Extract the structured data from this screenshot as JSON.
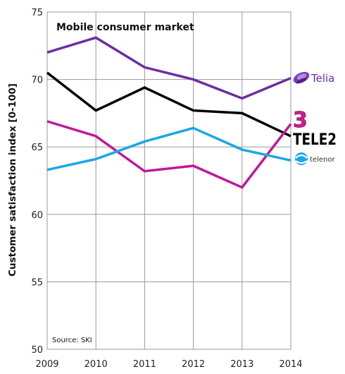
{
  "chart_data": {
    "type": "line",
    "title": "Mobile consumer market",
    "ylabel": "Customer satisfaction index [0-100]",
    "xlabel": "",
    "source": "Source: SKI",
    "x": [
      "2009",
      "2010",
      "2011",
      "2012",
      "2013",
      "2014"
    ],
    "ylim": [
      50,
      75
    ],
    "yticks": [
      "50",
      "55",
      "60",
      "65",
      "70",
      "75"
    ],
    "grid": true,
    "series": [
      {
        "name": "Telia",
        "color": "#6b2fa0",
        "values": [
          72.0,
          73.1,
          70.9,
          70.0,
          68.6,
          70.1
        ]
      },
      {
        "name": "Tele2",
        "color": "#000000",
        "values": [
          70.5,
          67.7,
          69.4,
          67.7,
          67.5,
          65.8
        ]
      },
      {
        "name": "3",
        "color": "#c0189a",
        "values": [
          66.9,
          65.8,
          63.2,
          63.6,
          62.0,
          66.7
        ]
      },
      {
        "name": "Telenor",
        "color": "#1aa7e8",
        "values": [
          63.3,
          64.1,
          65.4,
          66.4,
          64.8,
          64.0
        ]
      }
    ],
    "legend": {
      "placement": "right",
      "telia_text": "Telia",
      "three_text": "3",
      "tele2_text": "TELE2",
      "telenor_text": "telenor"
    }
  }
}
